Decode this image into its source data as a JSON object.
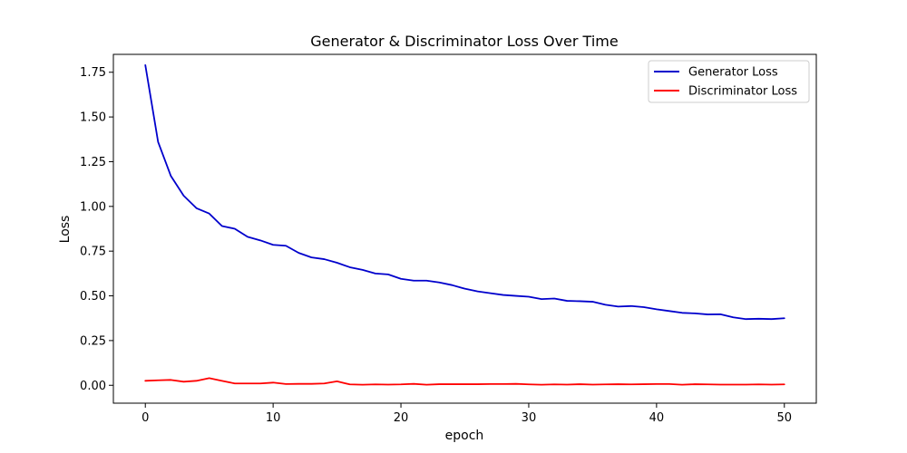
{
  "chart_data": {
    "type": "line",
    "title": "Generator & Discriminator Loss Over Time",
    "xlabel": "epoch",
    "ylabel": "Loss",
    "xlim": [
      -2.5,
      52.5
    ],
    "ylim": [
      -0.1,
      1.85
    ],
    "xticks": [
      0,
      10,
      20,
      30,
      40,
      50
    ],
    "xtick_labels": [
      "0",
      "10",
      "20",
      "30",
      "40",
      "50"
    ],
    "yticks": [
      0,
      0.25,
      0.5,
      0.75,
      1.0,
      1.25,
      1.5,
      1.75
    ],
    "ytick_labels": [
      "0.00",
      "0.25",
      "0.50",
      "0.75",
      "1.00",
      "1.25",
      "1.50",
      "1.75"
    ],
    "grid": false,
    "legend_position": "top-right",
    "x": [
      0,
      1,
      2,
      3,
      4,
      5,
      6,
      7,
      8,
      9,
      10,
      11,
      12,
      13,
      14,
      15,
      16,
      17,
      18,
      19,
      20,
      21,
      22,
      23,
      24,
      25,
      26,
      27,
      28,
      29,
      30,
      31,
      32,
      33,
      34,
      35,
      36,
      37,
      38,
      39,
      40,
      41,
      42,
      43,
      44,
      45,
      46,
      47,
      48,
      49,
      50
    ],
    "series": [
      {
        "name": "Generator Loss",
        "color": "#0000cc",
        "values": [
          1.79,
          1.36,
          1.17,
          1.06,
          0.99,
          0.96,
          0.89,
          0.875,
          0.83,
          0.81,
          0.785,
          0.78,
          0.74,
          0.715,
          0.705,
          0.685,
          0.66,
          0.645,
          0.625,
          0.62,
          0.595,
          0.585,
          0.585,
          0.575,
          0.56,
          0.54,
          0.525,
          0.515,
          0.505,
          0.5,
          0.495,
          0.482,
          0.485,
          0.472,
          0.47,
          0.467,
          0.45,
          0.44,
          0.443,
          0.437,
          0.425,
          0.415,
          0.405,
          0.402,
          0.396,
          0.397,
          0.38,
          0.37,
          0.372,
          0.37,
          0.375
        ]
      },
      {
        "name": "Discriminator Loss",
        "color": "#ff0000",
        "values": [
          0.025,
          0.028,
          0.03,
          0.02,
          0.025,
          0.04,
          0.025,
          0.01,
          0.01,
          0.01,
          0.015,
          0.007,
          0.008,
          0.008,
          0.01,
          0.022,
          0.005,
          0.003,
          0.005,
          0.004,
          0.005,
          0.008,
          0.003,
          0.006,
          0.006,
          0.006,
          0.006,
          0.007,
          0.007,
          0.008,
          0.005,
          0.003,
          0.005,
          0.004,
          0.006,
          0.004,
          0.005,
          0.006,
          0.005,
          0.006,
          0.007,
          0.007,
          0.003,
          0.006,
          0.005,
          0.004,
          0.004,
          0.004,
          0.005,
          0.004,
          0.005
        ]
      }
    ]
  }
}
